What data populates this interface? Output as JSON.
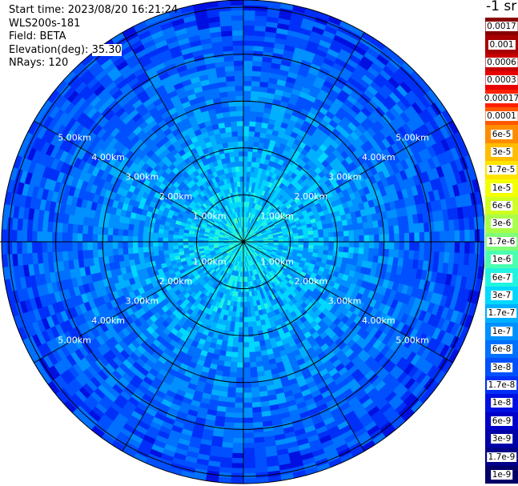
{
  "header": {
    "start_time": "Start time: 2023/08/20 16:21:24",
    "instrument": "WLS200s-181",
    "field": "Field: BETA",
    "elevation_label": "Elevation(deg):",
    "elevation_value": "35.30",
    "nrays": "NRays: 120"
  },
  "colorbar": {
    "units": "-1 sr",
    "levels": [
      {
        "label": "0.0017",
        "color": "#880000"
      },
      {
        "label": "0.001",
        "color": "#a80000"
      },
      {
        "label": "0.0006",
        "color": "#c80000"
      },
      {
        "label": "0.0003",
        "color": "#e80000"
      },
      {
        "label": "0.00017",
        "color": "#ff2000"
      },
      {
        "label": "0.0001",
        "color": "#ff5800"
      },
      {
        "label": "6e-5",
        "color": "#ff8c00"
      },
      {
        "label": "3e-5",
        "color": "#ffbc00"
      },
      {
        "label": "1.7e-5",
        "color": "#ffe400"
      },
      {
        "label": "1e-5",
        "color": "#f4ff00"
      },
      {
        "label": "6e-6",
        "color": "#d0ff20"
      },
      {
        "label": "3e-6",
        "color": "#a8ff48"
      },
      {
        "label": "1.7e-6",
        "color": "#80ff78"
      },
      {
        "label": "1e-6",
        "color": "#48ffb0"
      },
      {
        "label": "6e-7",
        "color": "#20f4e0"
      },
      {
        "label": "3e-7",
        "color": "#00d8ff"
      },
      {
        "label": "1.7e-7",
        "color": "#00b0ff"
      },
      {
        "label": "1e-7",
        "color": "#0090ff"
      },
      {
        "label": "6e-8",
        "color": "#0070ff"
      },
      {
        "label": "3e-8",
        "color": "#0050ff"
      },
      {
        "label": "1.7e-8",
        "color": "#0030f8"
      },
      {
        "label": "1e-8",
        "color": "#0010e0"
      },
      {
        "label": "6e-9",
        "color": "#0000c8"
      },
      {
        "label": "3e-9",
        "color": "#0000a8"
      },
      {
        "label": "1.7e-9",
        "color": "#000088"
      },
      {
        "label": "1e-9",
        "color": "#000068"
      }
    ]
  },
  "chart_data": {
    "type": "heatmap",
    "projection": "polar (PPI)",
    "n_rays": 120,
    "field": "BETA",
    "elevation_deg": 35.3,
    "range_rings_km": [
      1,
      2,
      3,
      4,
      5
    ],
    "range_labels": [
      "1.00km",
      "2.00km",
      "3.00km",
      "4.00km",
      "5.00km"
    ],
    "spokes_deg": [
      0,
      30,
      60,
      90,
      120,
      150,
      180,
      210,
      240,
      270,
      300,
      330
    ],
    "approx_log10_value_near_center": -6.3,
    "approx_log10_value_at_edge": -7.6
  }
}
